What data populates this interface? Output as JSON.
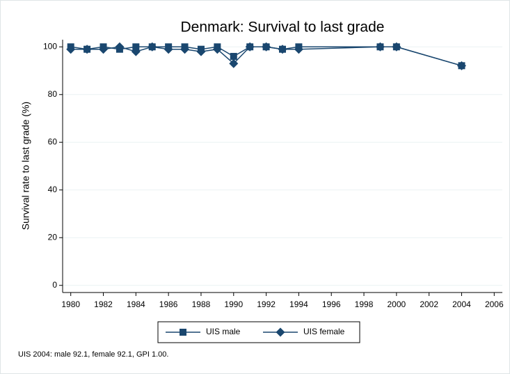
{
  "chart_data": {
    "type": "line",
    "title": "Denmark: Survival to last grade",
    "y_label": "Survival rate to last grade (%)",
    "note": "UIS 2004: male 92.1, female 92.1, GPI 1.00.",
    "x": [
      1980,
      1981,
      1982,
      1983,
      1984,
      1985,
      1986,
      1987,
      1988,
      1989,
      1990,
      1991,
      1992,
      1993,
      1994,
      1999,
      2000,
      2004
    ],
    "series": [
      {
        "name": "UIS male",
        "color": "#1a476f",
        "marker": "square",
        "values": [
          100,
          99,
          100,
          99,
          100,
          100,
          100,
          100,
          99,
          100,
          96,
          100,
          100,
          99,
          100,
          100,
          100,
          92.1
        ]
      },
      {
        "name": "UIS female",
        "color": "#1a476f",
        "marker": "diamond",
        "values": [
          99,
          99,
          99,
          100,
          98,
          100,
          99,
          99,
          98,
          99,
          93,
          100,
          100,
          99,
          99,
          100,
          100,
          92.1
        ]
      }
    ],
    "xlim": [
      1979.5,
      2006.5
    ],
    "xticks": [
      1980,
      1982,
      1984,
      1986,
      1988,
      1990,
      1992,
      1994,
      1996,
      1998,
      2000,
      2002,
      2004,
      2006
    ],
    "ylim": [
      -3,
      103
    ],
    "yticks": [
      0,
      20,
      40,
      60,
      80,
      100
    ],
    "grid": true,
    "legend": "bottom"
  }
}
